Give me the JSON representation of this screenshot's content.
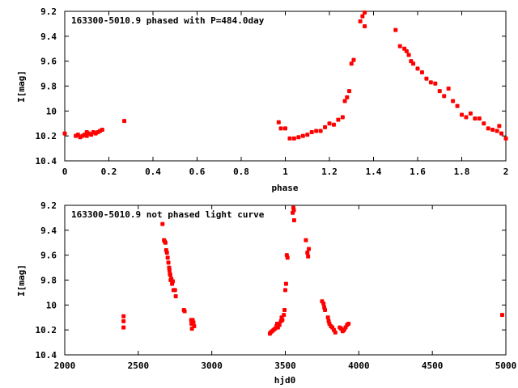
{
  "chart_data": [
    {
      "type": "scatter",
      "title": "163300-5010.9 phased with P=484.0day",
      "xlabel": "phase",
      "ylabel": "I[mag]",
      "xlim": [
        0,
        2
      ],
      "ylim": [
        10.4,
        9.2
      ],
      "y_inverted": true,
      "xticks": [
        "0",
        "0.2",
        "0.4",
        "0.6",
        "0.8",
        "1",
        "1.2",
        "1.4",
        "1.6",
        "1.8",
        "2"
      ],
      "yticks": [
        "9.2",
        "9.4",
        "9.6",
        "9.8",
        "10",
        "10.2",
        "10.4"
      ],
      "grid": false,
      "marker_color": "#ff0000",
      "series": [
        {
          "points": [
            [
              0.0,
              10.18
            ],
            [
              0.05,
              10.2
            ],
            [
              0.06,
              10.19
            ],
            [
              0.07,
              10.21
            ],
            [
              0.08,
              10.2
            ],
            [
              0.09,
              10.19
            ],
            [
              0.1,
              10.2
            ],
            [
              0.1,
              10.17
            ],
            [
              0.11,
              10.18
            ],
            [
              0.12,
              10.19
            ],
            [
              0.13,
              10.17
            ],
            [
              0.14,
              10.18
            ],
            [
              0.15,
              10.17
            ],
            [
              0.16,
              10.16
            ],
            [
              0.17,
              10.15
            ],
            [
              0.27,
              10.08
            ],
            [
              0.97,
              10.09
            ],
            [
              0.98,
              10.14
            ],
            [
              1.0,
              10.14
            ],
            [
              1.02,
              10.22
            ],
            [
              1.04,
              10.22
            ],
            [
              1.06,
              10.21
            ],
            [
              1.08,
              10.2
            ],
            [
              1.1,
              10.19
            ],
            [
              1.12,
              10.17
            ],
            [
              1.14,
              10.16
            ],
            [
              1.16,
              10.16
            ],
            [
              1.18,
              10.13
            ],
            [
              1.2,
              10.1
            ],
            [
              1.22,
              10.11
            ],
            [
              1.24,
              10.07
            ],
            [
              1.26,
              10.05
            ],
            [
              1.27,
              9.92
            ],
            [
              1.28,
              9.89
            ],
            [
              1.29,
              9.84
            ],
            [
              1.3,
              9.62
            ],
            [
              1.31,
              9.59
            ],
            [
              1.34,
              9.28
            ],
            [
              1.35,
              9.24
            ],
            [
              1.36,
              9.21
            ],
            [
              1.36,
              9.32
            ],
            [
              1.5,
              9.35
            ],
            [
              1.52,
              9.48
            ],
            [
              1.54,
              9.5
            ],
            [
              1.55,
              9.52
            ],
            [
              1.56,
              9.55
            ],
            [
              1.57,
              9.6
            ],
            [
              1.58,
              9.62
            ],
            [
              1.6,
              9.66
            ],
            [
              1.62,
              9.69
            ],
            [
              1.64,
              9.74
            ],
            [
              1.66,
              9.77
            ],
            [
              1.68,
              9.78
            ],
            [
              1.7,
              9.84
            ],
            [
              1.72,
              9.88
            ],
            [
              1.74,
              9.82
            ],
            [
              1.76,
              9.92
            ],
            [
              1.78,
              9.96
            ],
            [
              1.8,
              10.03
            ],
            [
              1.82,
              10.05
            ],
            [
              1.84,
              10.02
            ],
            [
              1.86,
              10.06
            ],
            [
              1.88,
              10.06
            ],
            [
              1.9,
              10.1
            ],
            [
              1.92,
              10.14
            ],
            [
              1.94,
              10.15
            ],
            [
              1.96,
              10.16
            ],
            [
              1.97,
              10.12
            ],
            [
              1.98,
              10.18
            ],
            [
              2.0,
              10.22
            ]
          ]
        }
      ]
    },
    {
      "type": "scatter",
      "title": "163300-5010.9 not phased light curve",
      "xlabel": "hjd0",
      "ylabel": "I[mag]",
      "xlim": [
        2000,
        5000
      ],
      "ylim": [
        10.4,
        9.2
      ],
      "y_inverted": true,
      "xticks": [
        "2000",
        "2500",
        "3000",
        "3500",
        "4000",
        "4500",
        "5000"
      ],
      "yticks": [
        "9.2",
        "9.4",
        "9.6",
        "9.8",
        "10",
        "10.2",
        "10.4"
      ],
      "grid": false,
      "marker_color": "#ff0000",
      "series": [
        {
          "points": [
            [
              2400,
              10.09
            ],
            [
              2400,
              10.13
            ],
            [
              2400,
              10.18
            ],
            [
              2665,
              9.35
            ],
            [
              2675,
              9.48
            ],
            [
              2680,
              9.49
            ],
            [
              2685,
              9.5
            ],
            [
              2690,
              9.56
            ],
            [
              2695,
              9.58
            ],
            [
              2700,
              9.62
            ],
            [
              2705,
              9.66
            ],
            [
              2710,
              9.7
            ],
            [
              2712,
              9.72
            ],
            [
              2715,
              9.75
            ],
            [
              2718,
              9.76
            ],
            [
              2720,
              9.8
            ],
            [
              2725,
              9.79
            ],
            [
              2730,
              9.83
            ],
            [
              2735,
              9.81
            ],
            [
              2740,
              9.88
            ],
            [
              2750,
              9.88
            ],
            [
              2755,
              9.93
            ],
            [
              2810,
              10.04
            ],
            [
              2815,
              10.05
            ],
            [
              2860,
              10.12
            ],
            [
              2862,
              10.15
            ],
            [
              2865,
              10.19
            ],
            [
              2870,
              10.12
            ],
            [
              2875,
              10.14
            ],
            [
              2880,
              10.17
            ],
            [
              3395,
              10.23
            ],
            [
              3400,
              10.22
            ],
            [
              3410,
              10.21
            ],
            [
              3420,
              10.2
            ],
            [
              3430,
              10.19
            ],
            [
              3440,
              10.17
            ],
            [
              3445,
              10.15
            ],
            [
              3450,
              10.18
            ],
            [
              3460,
              10.16
            ],
            [
              3470,
              10.13
            ],
            [
              3475,
              10.1
            ],
            [
              3480,
              10.12
            ],
            [
              3490,
              10.08
            ],
            [
              3495,
              10.04
            ],
            [
              3500,
              9.88
            ],
            [
              3505,
              9.83
            ],
            [
              3510,
              9.6
            ],
            [
              3515,
              9.62
            ],
            [
              3550,
              9.26
            ],
            [
              3555,
              9.22
            ],
            [
              3558,
              9.24
            ],
            [
              3560,
              9.32
            ],
            [
              3640,
              9.48
            ],
            [
              3650,
              9.58
            ],
            [
              3655,
              9.61
            ],
            [
              3660,
              9.55
            ],
            [
              3750,
              9.97
            ],
            [
              3760,
              9.99
            ],
            [
              3765,
              10.02
            ],
            [
              3770,
              10.04
            ],
            [
              3790,
              10.1
            ],
            [
              3795,
              10.13
            ],
            [
              3800,
              10.15
            ],
            [
              3810,
              10.17
            ],
            [
              3820,
              10.18
            ],
            [
              3830,
              10.2
            ],
            [
              3840,
              10.22
            ],
            [
              3870,
              10.18
            ],
            [
              3880,
              10.19
            ],
            [
              3890,
              10.21
            ],
            [
              3900,
              10.2
            ],
            [
              3910,
              10.18
            ],
            [
              3920,
              10.16
            ],
            [
              3930,
              10.15
            ],
            [
              4975,
              10.08
            ]
          ]
        }
      ]
    }
  ]
}
